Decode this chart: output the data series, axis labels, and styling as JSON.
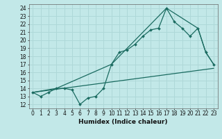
{
  "xlabel": "Humidex (Indice chaleur)",
  "bg_color": "#c2e8e8",
  "grid_color": "#aed8d8",
  "line_color": "#1a6b60",
  "xlim": [
    -0.5,
    23.5
  ],
  "ylim": [
    11.5,
    24.5
  ],
  "xticks": [
    0,
    1,
    2,
    3,
    4,
    5,
    6,
    7,
    8,
    9,
    10,
    11,
    12,
    13,
    14,
    15,
    16,
    17,
    18,
    19,
    20,
    21,
    22,
    23
  ],
  "yticks": [
    12,
    13,
    14,
    15,
    16,
    17,
    18,
    19,
    20,
    21,
    22,
    23,
    24
  ],
  "line1_x": [
    0,
    1,
    2,
    3,
    4,
    5,
    6,
    7,
    8,
    9,
    10,
    11,
    12,
    13,
    14,
    15,
    16,
    17,
    18,
    19,
    20,
    21,
    22,
    23
  ],
  "line1_y": [
    13.5,
    13.0,
    13.5,
    14.0,
    14.0,
    13.8,
    12.0,
    12.8,
    13.0,
    14.0,
    17.0,
    18.5,
    18.8,
    19.5,
    20.5,
    21.3,
    21.5,
    24.0,
    22.3,
    21.5,
    20.5,
    21.5,
    18.5,
    17.0
  ],
  "line2_x": [
    0,
    3,
    10,
    17,
    21,
    22,
    23
  ],
  "line2_y": [
    13.5,
    14.0,
    17.0,
    24.0,
    21.5,
    18.5,
    17.0
  ],
  "line3_x": [
    0,
    23
  ],
  "line3_y": [
    13.5,
    16.5
  ],
  "tick_fontsize": 5.5,
  "xlabel_fontsize": 6.5
}
